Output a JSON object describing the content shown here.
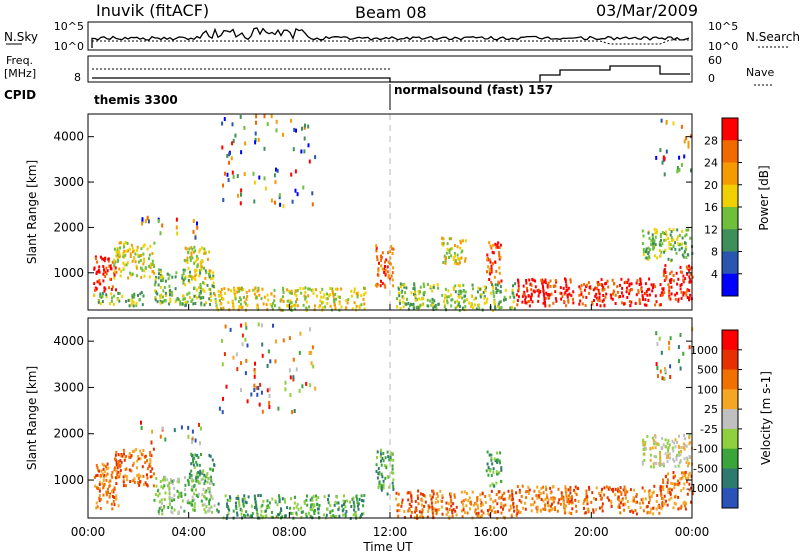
{
  "header": {
    "station": "Inuvik (fitACF)",
    "beam": "Beam 08",
    "date": "03/Mar/2009"
  },
  "strip_panels": {
    "nsky": {
      "left_label": "N.Sky",
      "right_label": "N.Search",
      "left_ticks": [
        "10^5",
        "10^0"
      ],
      "right_ticks": [
        "10^5",
        "10^0"
      ]
    },
    "freq": {
      "left_label_line1": "Freq.",
      "left_label_line2": "[MHz]",
      "left_ticks": [
        "8"
      ],
      "right_ticks": [
        "60",
        "0"
      ],
      "right_label": "Nave"
    },
    "cpid": {
      "label": "CPID",
      "modes": [
        {
          "name": "themis 3300",
          "start_hour": 0
        },
        {
          "name": "normalsound (fast) 157",
          "start_hour": 12
        }
      ]
    }
  },
  "x_axis": {
    "label": "Time UT",
    "ticks": [
      "00:00",
      "04:00",
      "08:00",
      "12:00",
      "16:00",
      "20:00",
      "00:00"
    ]
  },
  "chart_data": [
    {
      "type": "heatmap",
      "title": "",
      "xlabel": "Time UT",
      "ylabel": "Slant Range [km]",
      "xlim": [
        0,
        24
      ],
      "ylim": [
        180,
        4500
      ],
      "yticks": [
        "1000",
        "2000",
        "3000",
        "4000"
      ],
      "colorbar": {
        "label": "Power [dB]",
        "ticks": [
          "4",
          "8",
          "12",
          "16",
          "20",
          "24",
          "28"
        ],
        "colors": [
          "#0000ff",
          "#2a56b0",
          "#3f8f5a",
          "#6fbf3a",
          "#f0d000",
          "#f59a00",
          "#f06a00",
          "#ff0000"
        ]
      },
      "regions": [
        {
          "t0": 0.2,
          "t1": 1.1,
          "r0": 600,
          "r1": 1400,
          "level": 7
        },
        {
          "t0": 1.0,
          "t1": 2.6,
          "r0": 900,
          "r1": 1700,
          "level": 4
        },
        {
          "t0": 0.2,
          "t1": 2.2,
          "r0": 300,
          "r1": 600,
          "level": 3
        },
        {
          "t0": 2.6,
          "t1": 5.0,
          "r0": 300,
          "r1": 1100,
          "level": 3
        },
        {
          "t0": 3.8,
          "t1": 4.8,
          "r0": 900,
          "r1": 1600,
          "level": 4
        },
        {
          "t0": 5.0,
          "t1": 11.0,
          "r0": 200,
          "r1": 700,
          "level": 4
        },
        {
          "t0": 11.4,
          "t1": 12.1,
          "r0": 700,
          "r1": 1700,
          "level": 6
        },
        {
          "t0": 12.2,
          "t1": 17.0,
          "r0": 200,
          "r1": 800,
          "level": 3
        },
        {
          "t0": 14.0,
          "t1": 15.0,
          "r0": 1200,
          "r1": 1800,
          "level": 4
        },
        {
          "t0": 15.8,
          "t1": 16.4,
          "r0": 800,
          "r1": 1700,
          "level": 6
        },
        {
          "t0": 17.0,
          "t1": 22.8,
          "r0": 300,
          "r1": 900,
          "level": 7
        },
        {
          "t0": 22.0,
          "t1": 24.0,
          "r0": 1300,
          "r1": 2000,
          "level": 3
        },
        {
          "t0": 22.8,
          "t1": 24.0,
          "r0": 400,
          "r1": 1200,
          "level": 7
        }
      ]
    },
    {
      "type": "heatmap",
      "title": "",
      "xlabel": "Time UT",
      "ylabel": "Slant Range [km]",
      "xlim": [
        0,
        24
      ],
      "ylim": [
        180,
        4500
      ],
      "yticks": [
        "1000",
        "2000",
        "3000",
        "4000"
      ],
      "colorbar": {
        "label": "Velocity [m s-1]",
        "ticks": [
          "1000",
          "500",
          "100",
          "25",
          "-25",
          "-100",
          "-500",
          "-1000"
        ],
        "colors": [
          "#2a52b8",
          "#2f7a70",
          "#3aa53a",
          "#8fd040",
          "#c0c0c0",
          "#f5a623",
          "#f07000",
          "#e63000",
          "#ff0000"
        ]
      },
      "regions": [
        {
          "t0": 0.2,
          "t1": 1.2,
          "r0": 400,
          "r1": 1400,
          "level": 6
        },
        {
          "t0": 1.0,
          "t1": 2.6,
          "r0": 900,
          "r1": 1700,
          "level": 6
        },
        {
          "t0": 2.6,
          "t1": 5.0,
          "r0": 300,
          "r1": 1100,
          "level": 3
        },
        {
          "t0": 4.0,
          "t1": 5.0,
          "r0": 1000,
          "r1": 1600,
          "level": 2
        },
        {
          "t0": 5.0,
          "t1": 11.0,
          "r0": 200,
          "r1": 700,
          "level": 2
        },
        {
          "t0": 11.4,
          "t1": 12.1,
          "r0": 700,
          "r1": 1700,
          "level": 2
        },
        {
          "t0": 12.2,
          "t1": 17.0,
          "r0": 200,
          "r1": 800,
          "level": 6
        },
        {
          "t0": 15.8,
          "t1": 16.4,
          "r0": 900,
          "r1": 1700,
          "level": 2
        },
        {
          "t0": 17.0,
          "t1": 22.8,
          "r0": 300,
          "r1": 900,
          "level": 6
        },
        {
          "t0": 22.0,
          "t1": 24.0,
          "r0": 1300,
          "r1": 2000,
          "level": 4
        },
        {
          "t0": 22.8,
          "t1": 24.0,
          "r0": 400,
          "r1": 1200,
          "level": 6
        }
      ]
    }
  ]
}
